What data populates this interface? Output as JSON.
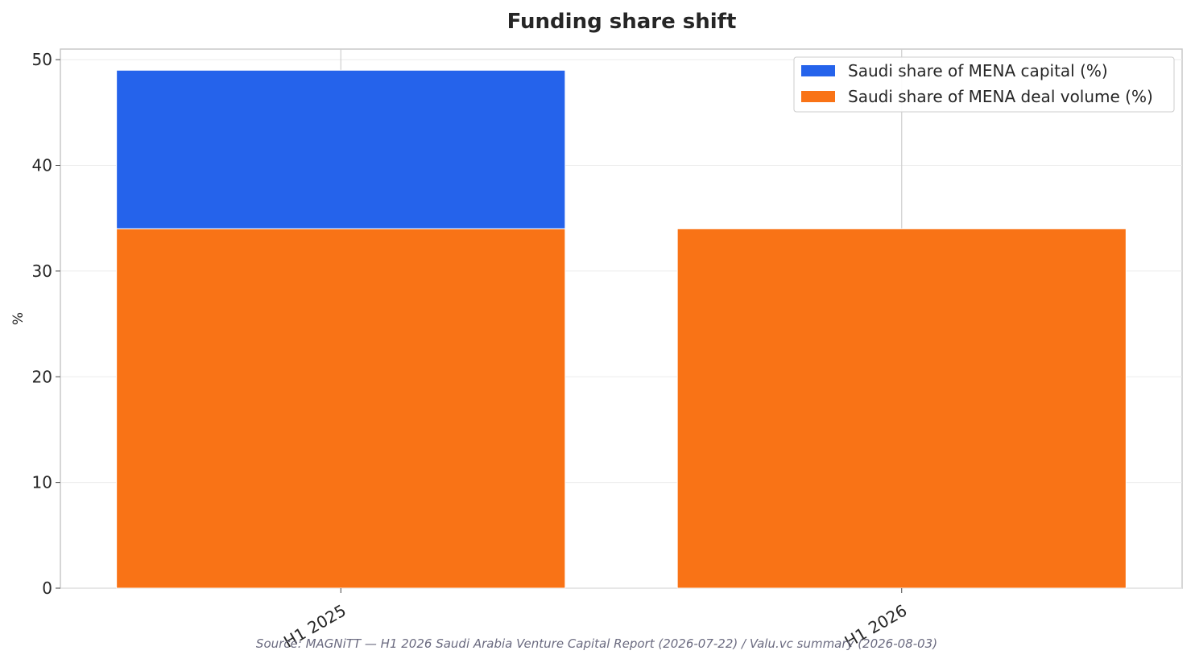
{
  "chart_data": {
    "type": "bar",
    "stacked": true,
    "title": "Funding share shift",
    "xlabel": "",
    "ylabel": "%",
    "categories": [
      "H1 2025",
      "H1 2026"
    ],
    "series": [
      {
        "name": "Saudi share of MENA deal volume (%)",
        "values": [
          34,
          34
        ],
        "color": "#f97316"
      },
      {
        "name": "Saudi share of MENA capital (%)",
        "values": [
          15,
          0
        ],
        "color": "#2563eb"
      }
    ],
    "ylim": [
      0,
      51
    ],
    "yticks": [
      0,
      10,
      20,
      30,
      40,
      50
    ],
    "grid": true,
    "legend": {
      "placement": "top-right",
      "entries": [
        {
          "label": "Saudi share of MENA capital (%)",
          "color": "#2563eb"
        },
        {
          "label": "Saudi share of MENA deal volume (%)",
          "color": "#f97316"
        }
      ]
    },
    "source": "Source: MAGNiTT — H1 2026 Saudi Arabia Venture Capital Report (2026-07-22) / Valu.vc summary (2026-08-03)"
  }
}
